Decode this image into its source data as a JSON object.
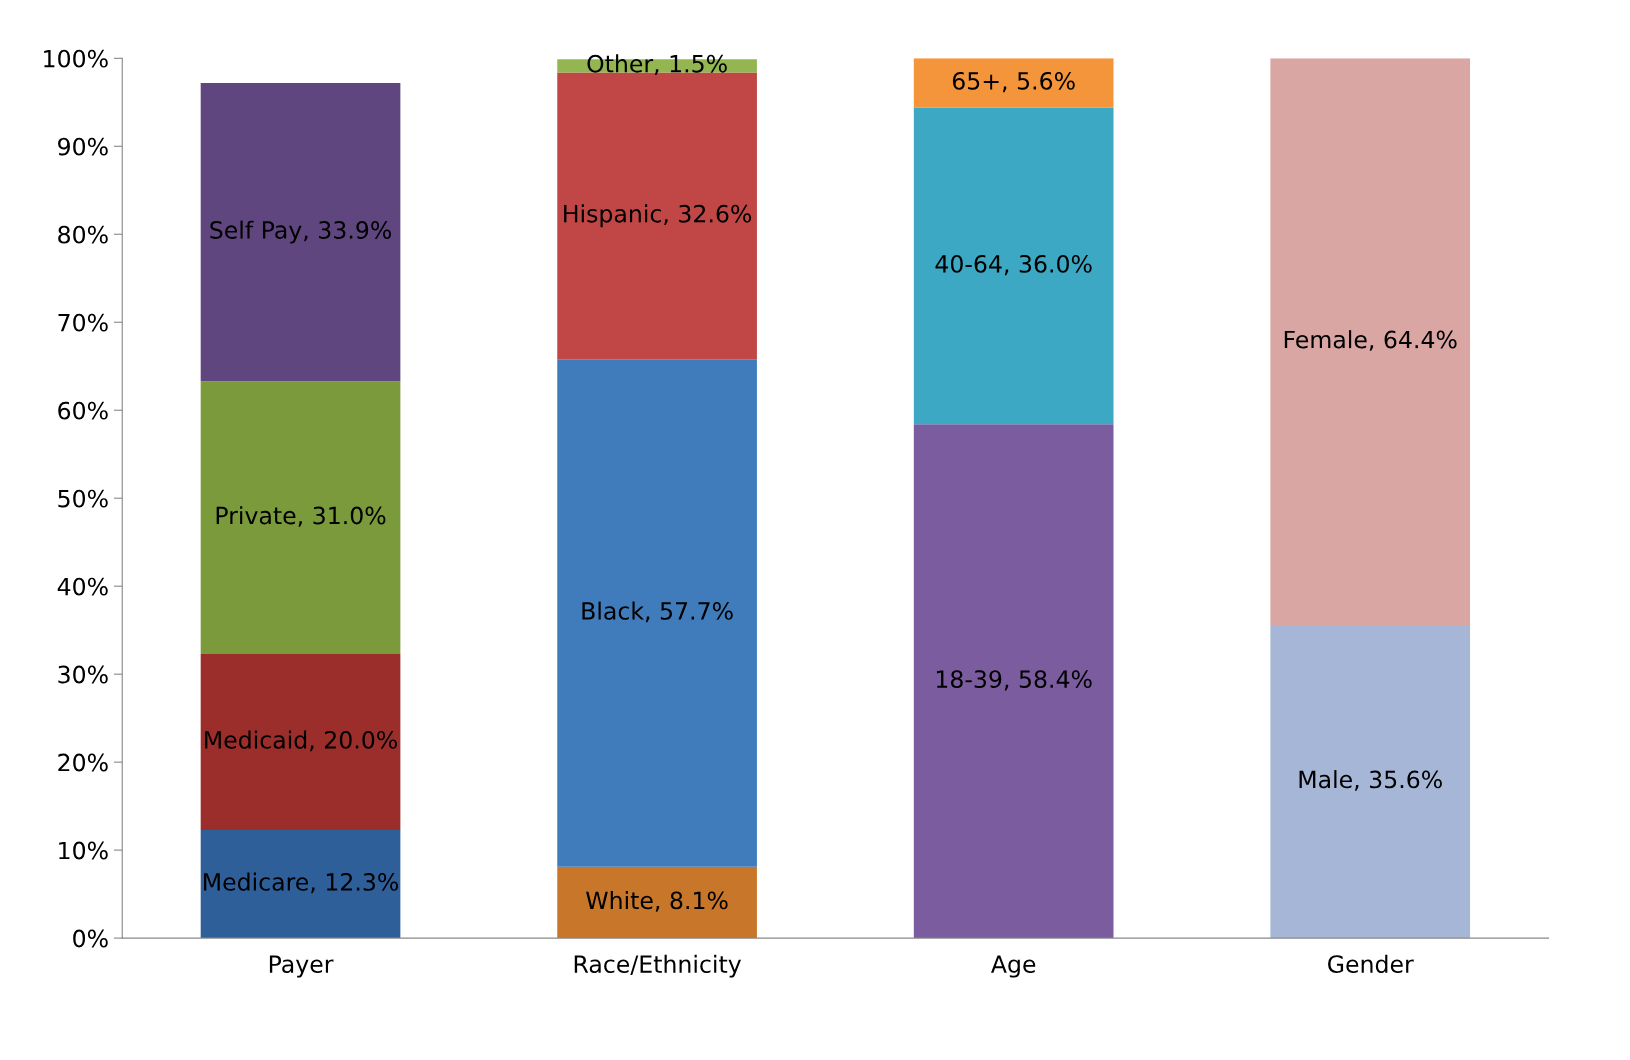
{
  "chart_data": {
    "type": "bar",
    "stacked": true,
    "categories": [
      "Payer",
      "Race/Ethnicity",
      "Age",
      "Gender"
    ],
    "ylim": [
      0,
      100
    ],
    "yticks": [
      {
        "value": 0,
        "label": "0%"
      },
      {
        "value": 10,
        "label": "10%"
      },
      {
        "value": 20,
        "label": "20%"
      },
      {
        "value": 30,
        "label": "30%"
      },
      {
        "value": 40,
        "label": "40%"
      },
      {
        "value": 50,
        "label": "50%"
      },
      {
        "value": 60,
        "label": "60%"
      },
      {
        "value": 70,
        "label": "70%"
      },
      {
        "value": 80,
        "label": "80%"
      },
      {
        "value": 90,
        "label": "90%"
      },
      {
        "value": 100,
        "label": "100%"
      }
    ],
    "grid": false,
    "legend": false,
    "series": [
      {
        "color": "#2e5f99",
        "values": [
          12.3,
          null,
          null,
          null
        ],
        "value_labels": [
          "Medicare, 12.3%",
          null,
          null,
          null
        ]
      },
      {
        "color": "#9b2d2b",
        "values": [
          20.0,
          null,
          null,
          null
        ],
        "value_labels": [
          "Medicaid, 20.0%",
          null,
          null,
          null
        ]
      },
      {
        "color": "#7a9a3c",
        "values": [
          31.0,
          null,
          null,
          null
        ],
        "value_labels": [
          "Private, 31.0%",
          null,
          null,
          null
        ]
      },
      {
        "color": "#60467f",
        "values": [
          33.9,
          null,
          null,
          null
        ],
        "value_labels": [
          "Self Pay, 33.9%",
          null,
          null,
          null
        ]
      },
      {
        "color": "#c8762a",
        "values": [
          null,
          8.1,
          null,
          null
        ],
        "value_labels": [
          null,
          "White, 8.1%",
          null,
          null
        ]
      },
      {
        "color": "#407cbb",
        "values": [
          null,
          57.7,
          null,
          null
        ],
        "value_labels": [
          null,
          "Black, 57.7%",
          null,
          null
        ]
      },
      {
        "color": "#c04745",
        "values": [
          null,
          32.6,
          null,
          null
        ],
        "value_labels": [
          null,
          "Hispanic, 32.6%",
          null,
          null
        ]
      },
      {
        "color": "#94b651",
        "values": [
          null,
          1.5,
          null,
          null
        ],
        "value_labels": [
          null,
          "Other, 1.5%",
          null,
          null
        ]
      },
      {
        "color": "#7b5c9f",
        "values": [
          null,
          null,
          58.4,
          null
        ],
        "value_labels": [
          null,
          null,
          "18-39, 58.4%",
          null
        ]
      },
      {
        "color": "#3ca8c4",
        "values": [
          null,
          null,
          36.0,
          null
        ],
        "value_labels": [
          null,
          null,
          "40-64, 36.0%",
          null
        ]
      },
      {
        "color": "#f4943b",
        "values": [
          null,
          null,
          5.6,
          null
        ],
        "value_labels": [
          null,
          null,
          "65+, 5.6%",
          null
        ]
      },
      {
        "color": "#a5b6d6",
        "values": [
          null,
          null,
          null,
          35.6
        ],
        "value_labels": [
          null,
          null,
          null,
          "Male, 35.6%"
        ]
      },
      {
        "color": "#d9a6a4",
        "values": [
          null,
          null,
          null,
          64.4
        ],
        "value_labels": [
          null,
          null,
          null,
          "Female, 64.4%"
        ]
      }
    ]
  }
}
